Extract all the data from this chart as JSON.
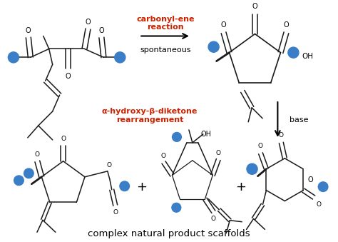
{
  "background_color": "#ffffff",
  "figsize": [
    4.74,
    3.39
  ],
  "dpi": 100,
  "red_color": "#cc2200",
  "blue_color": "#3a7ec8",
  "bond_color": "#1a1a1a",
  "text_carbonyl_ene": "carbonyl-ene\nreaction",
  "text_spontaneous": "spontaneous",
  "text_alpha_hydroxy": "α-hydroxy-β-diketone\nrearrangement",
  "text_base": "base",
  "text_bottom": "complex natural product scaffolds",
  "arrow_lw": 1.5,
  "bond_lw": 1.1,
  "blue_r": 0.016
}
